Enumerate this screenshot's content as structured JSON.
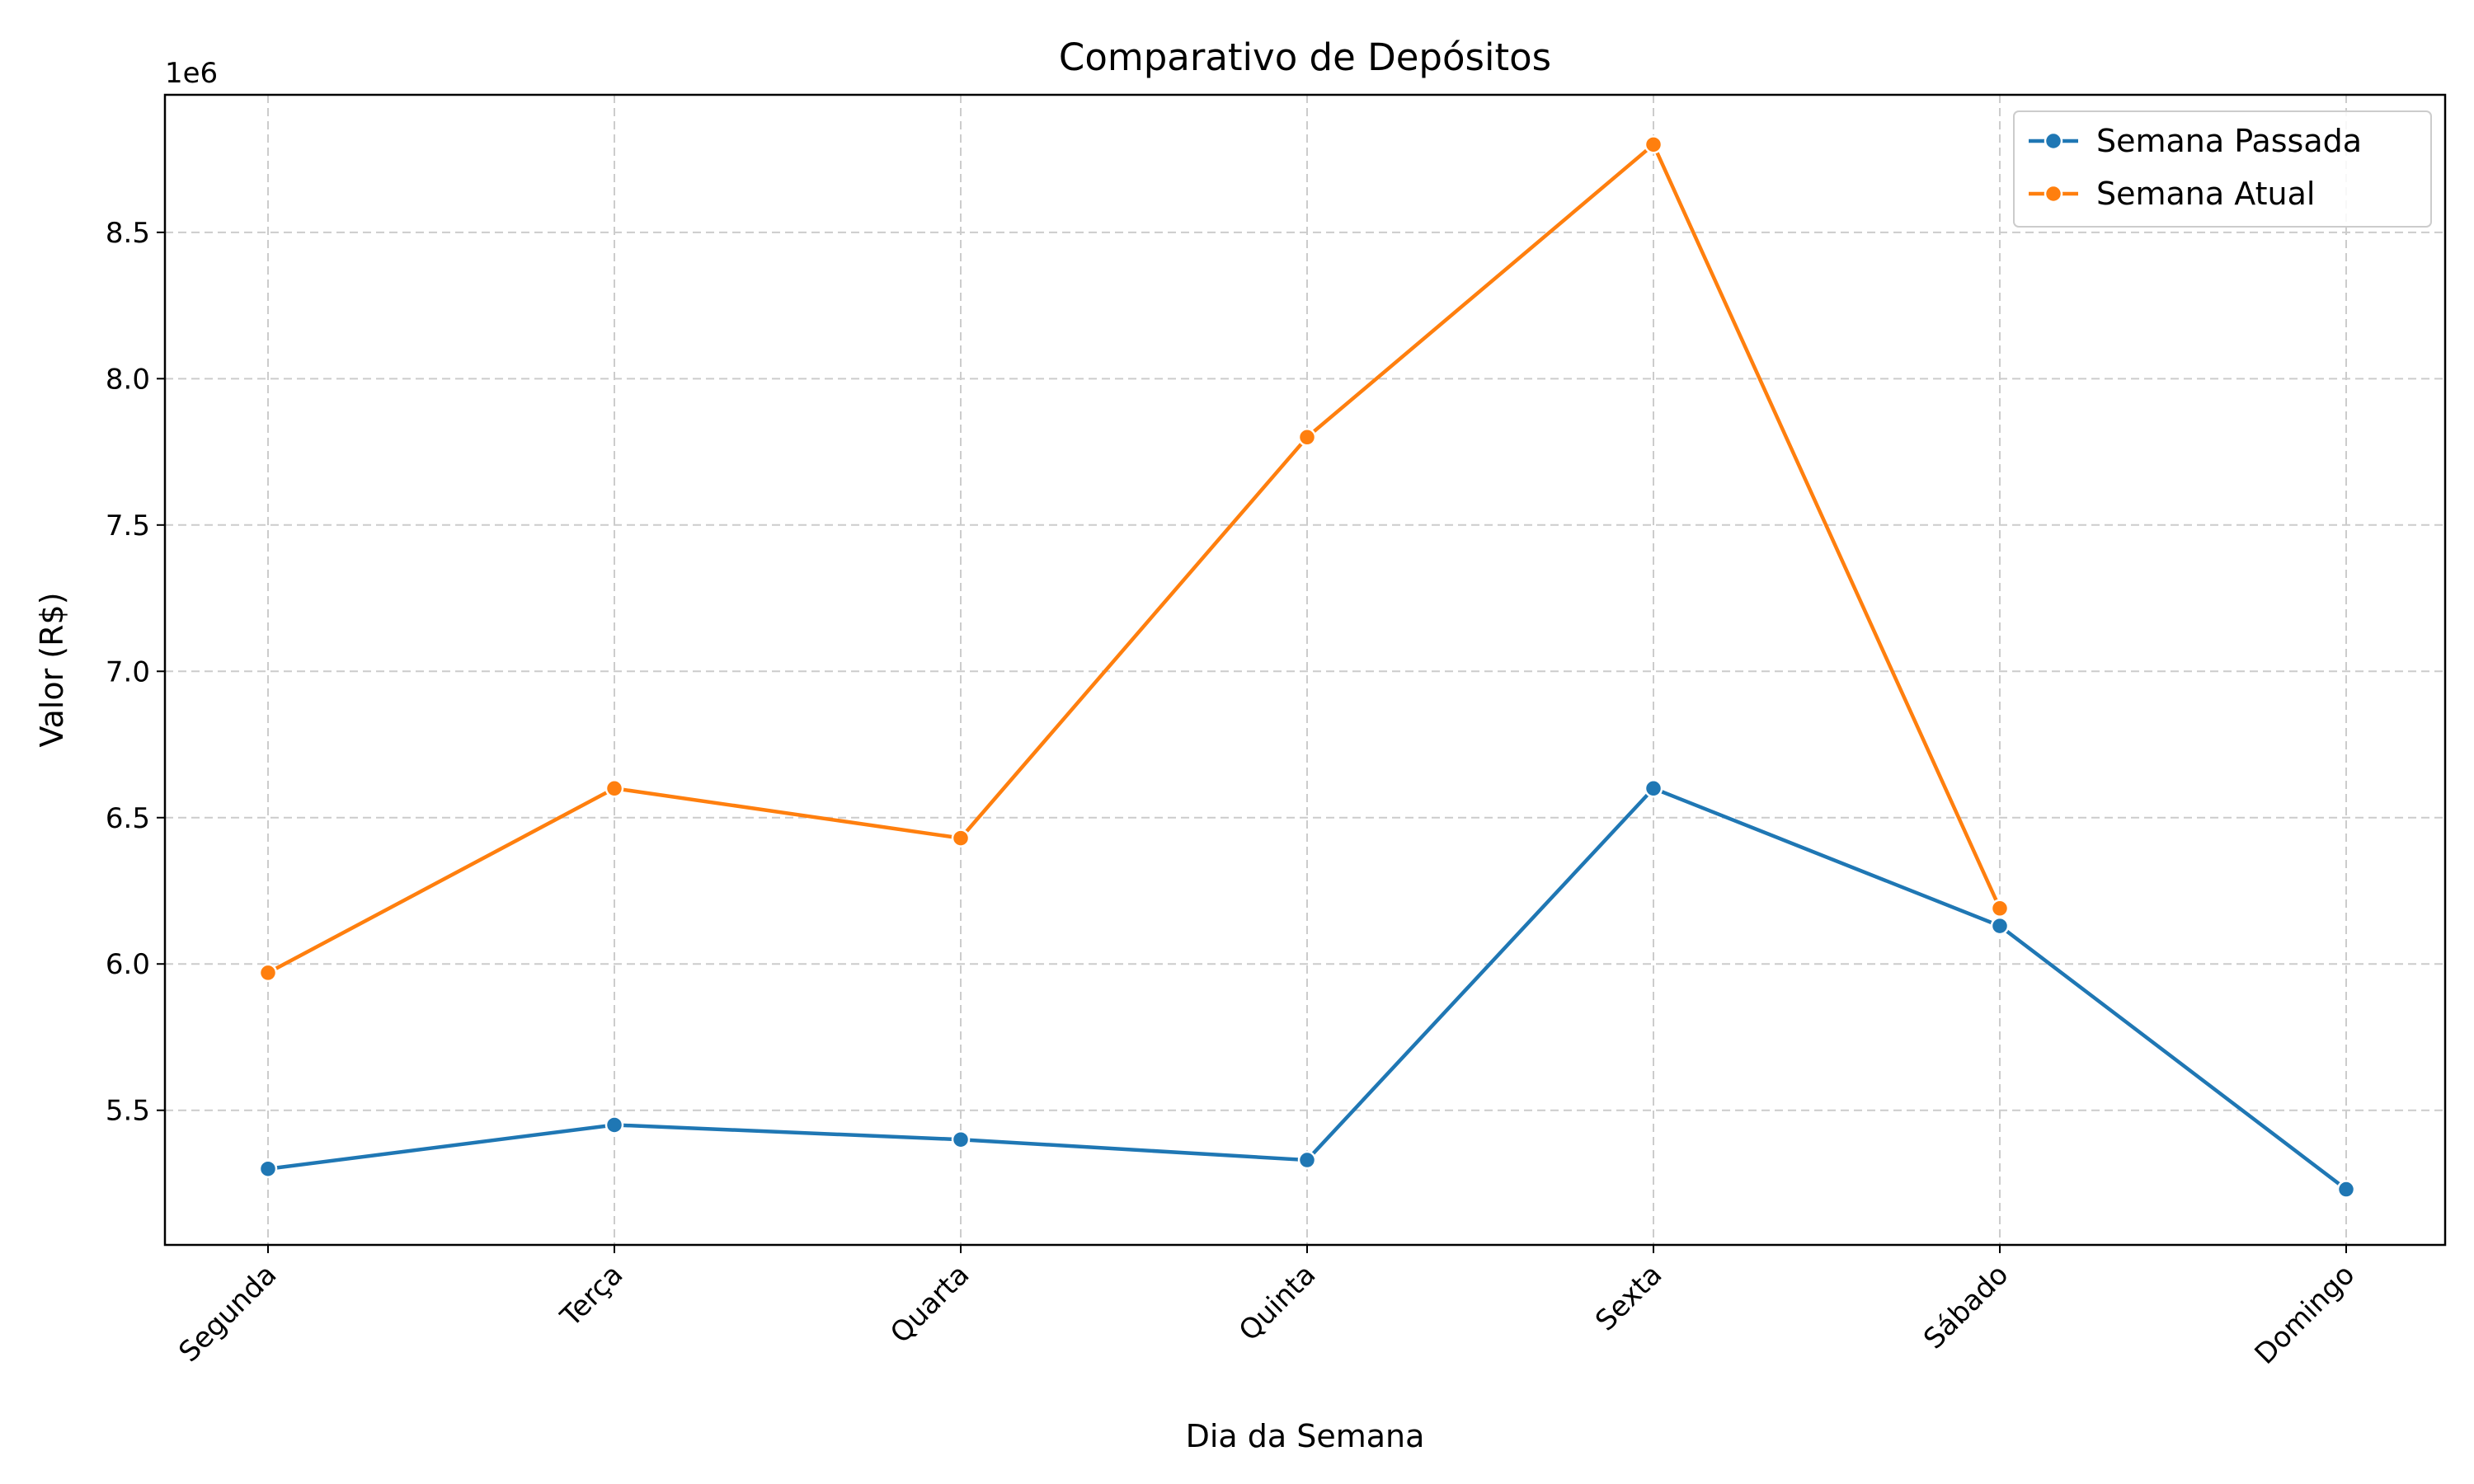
{
  "chart_data": {
    "type": "line",
    "title": "Comparativo de Depósitos",
    "xlabel": "Dia da Semana",
    "ylabel": "Valor (R$)",
    "y_offset_label": "1e6",
    "categories": [
      "Segunda",
      "Terça",
      "Quarta",
      "Quinta",
      "Sexta",
      "Sábado",
      "Domingo"
    ],
    "ylim": [
      5.04,
      8.97
    ],
    "y_ticks": [
      5.5,
      6.0,
      6.5,
      7.0,
      7.5,
      8.0,
      8.5
    ],
    "y_tick_labels": [
      "5.5",
      "6.0",
      "6.5",
      "7.0",
      "7.5",
      "8.0",
      "8.5"
    ],
    "grid": true,
    "legend_position": "top-right",
    "series": [
      {
        "name": "Semana Passada",
        "color": "#1f77b4",
        "values": [
          5.3,
          5.45,
          5.4,
          5.33,
          6.6,
          6.13,
          5.23
        ]
      },
      {
        "name": "Semana Atual",
        "color": "#ff7f0e",
        "values": [
          5.97,
          6.6,
          6.43,
          7.8,
          8.8,
          6.19,
          null
        ]
      }
    ]
  }
}
